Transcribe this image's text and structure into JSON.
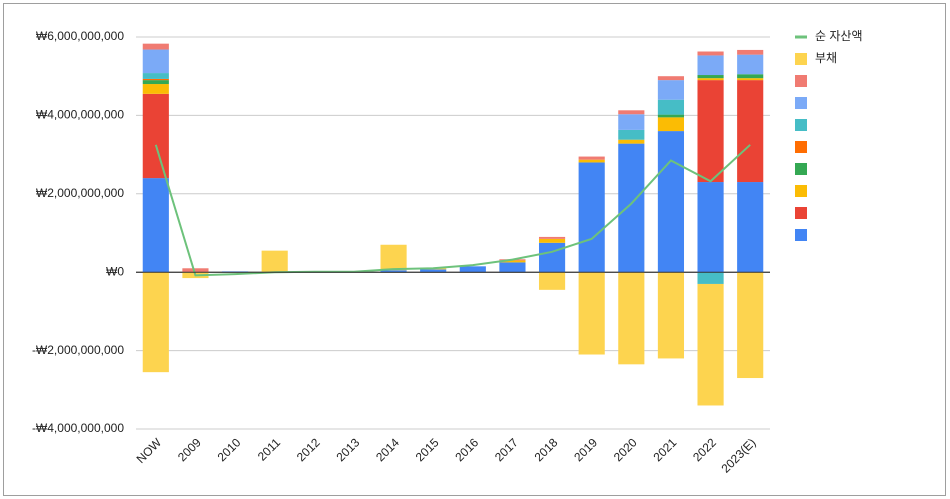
{
  "chart_data": {
    "type": "bar",
    "stacked": true,
    "categories": [
      "NOW",
      "2009",
      "2010",
      "2011",
      "2012",
      "2013",
      "2014",
      "2015",
      "2016",
      "2017",
      "2018",
      "2019",
      "2020",
      "2021",
      "2022",
      "2023(E)"
    ],
    "series": [
      {
        "color": "#4285f4",
        "values": [
          2400000000,
          0,
          20000000,
          0,
          0,
          0,
          50000000,
          70000000,
          150000000,
          250000000,
          750000000,
          2800000000,
          3280000000,
          3600000000,
          2300000000,
          2300000000
        ]
      },
      {
        "color": "#ea4335",
        "values": [
          2150000000,
          0,
          0,
          0,
          0,
          0,
          0,
          0,
          0,
          0,
          0,
          0,
          0,
          0,
          2600000000,
          2600000000
        ]
      },
      {
        "color": "#fbbc04",
        "values": [
          250000000,
          0,
          0,
          0,
          0,
          0,
          0,
          0,
          0,
          50000000,
          100000000,
          70000000,
          100000000,
          350000000,
          50000000,
          50000000
        ]
      },
      {
        "color": "#34a853",
        "values": [
          100000000,
          0,
          0,
          0,
          0,
          0,
          0,
          0,
          0,
          0,
          0,
          0,
          0,
          70000000,
          80000000,
          100000000
        ]
      },
      {
        "color": "#ff6d01",
        "values": [
          30000000,
          0,
          0,
          0,
          0,
          0,
          0,
          0,
          0,
          0,
          0,
          0,
          0,
          0,
          0,
          0
        ]
      },
      {
        "color": "#46bdc6",
        "values": [
          150000000,
          0,
          0,
          0,
          0,
          0,
          0,
          0,
          0,
          0,
          0,
          0,
          250000000,
          380000000,
          -300000000,
          0
        ]
      },
      {
        "color": "#7baaf7",
        "values": [
          600000000,
          0,
          0,
          0,
          0,
          0,
          0,
          0,
          0,
          0,
          0,
          0,
          400000000,
          500000000,
          500000000,
          500000000
        ]
      },
      {
        "color": "#f07b72",
        "values": [
          150000000,
          100000000,
          0,
          0,
          0,
          0,
          0,
          0,
          0,
          30000000,
          50000000,
          80000000,
          100000000,
          100000000,
          100000000,
          120000000
        ]
      },
      {
        "name": "부채",
        "color": "#fdd44f",
        "values": [
          -2550000000,
          -150000000,
          0,
          550000000,
          0,
          0,
          650000000,
          50000000,
          0,
          0,
          -450000000,
          -2100000000,
          -2350000000,
          -2200000000,
          -3100000000,
          -2700000000
        ]
      },
      {
        "name": "순 자산액",
        "type": "line",
        "color": "#6dc27b",
        "values": [
          3250000000,
          -80000000,
          -50000000,
          0,
          10000000,
          10000000,
          80000000,
          100000000,
          180000000,
          320000000,
          520000000,
          850000000,
          1750000000,
          2850000000,
          2320000000,
          3250000000
        ]
      }
    ],
    "ylim": [
      -4000000000,
      6000000000
    ],
    "yticks": [
      {
        "value": -4000000000,
        "label": "-₩4,000,000,000"
      },
      {
        "value": -2000000000,
        "label": "-₩2,000,000,000"
      },
      {
        "value": 0,
        "label": "₩0"
      },
      {
        "value": 2000000000,
        "label": "₩2,000,000,000"
      },
      {
        "value": 4000000000,
        "label": "₩4,000,000,000"
      },
      {
        "value": 6000000000,
        "label": "₩6,000,000,000"
      }
    ],
    "grid": true,
    "legend": "right"
  }
}
